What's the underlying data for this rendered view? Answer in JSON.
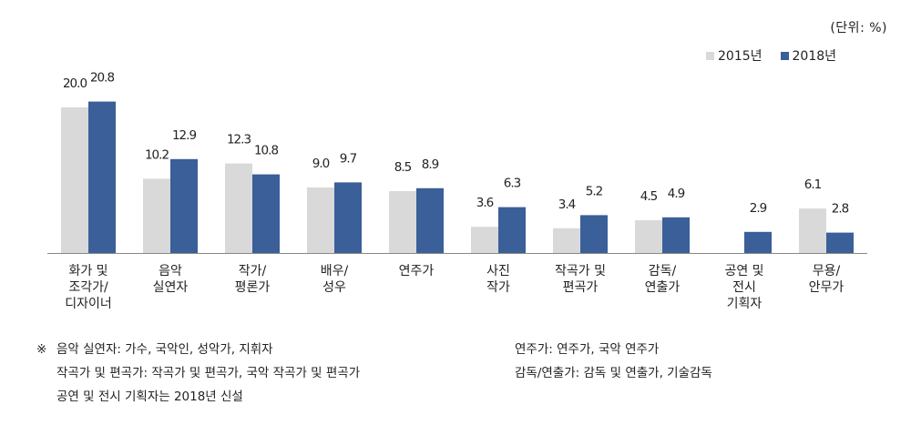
{
  "unit_label": "(단위: %)",
  "legend": [
    {
      "name": "2015년",
      "color": "#d9d9d9"
    },
    {
      "name": "2018년",
      "color": "#3a5f99"
    }
  ],
  "chart_data": {
    "type": "bar",
    "categories": [
      [
        "화가 및",
        "조각가/",
        "디자이너"
      ],
      [
        "음악",
        "실연자"
      ],
      [
        "작가/",
        "평론가"
      ],
      [
        "배우/",
        "성우"
      ],
      [
        "연주가"
      ],
      [
        "사진",
        "작가"
      ],
      [
        "작곡가 및",
        "편곡가"
      ],
      [
        "감독/",
        "연출가"
      ],
      [
        "공연 및",
        "전시",
        "기획자"
      ],
      [
        "무용/",
        "안무가"
      ]
    ],
    "series": [
      {
        "name": "2015년",
        "color": "#d9d9d9",
        "values": [
          20.0,
          10.2,
          12.3,
          9.0,
          8.5,
          3.6,
          3.4,
          4.5,
          null,
          6.1
        ],
        "labels": [
          "20.0",
          "10.2",
          "12.3",
          "9.0",
          "8.5",
          "3.6",
          "3.4",
          "4.5",
          "",
          "6.1"
        ]
      },
      {
        "name": "2018년",
        "color": "#3a5f99",
        "values": [
          20.8,
          12.9,
          10.8,
          9.7,
          8.9,
          6.3,
          5.2,
          4.9,
          2.9,
          2.8
        ],
        "labels": [
          "20.8",
          "12.9",
          "10.8",
          "9.7",
          "8.9",
          "6.3",
          "5.2",
          "4.9",
          "2.9",
          "2.8"
        ]
      }
    ],
    "ylim": [
      0,
      21
    ],
    "grid": false
  },
  "notes": {
    "marker": "※",
    "left": [
      "음악 실연자: 가수, 국악인, 성악가, 지휘자",
      "작곡가 및 편곡가: 작곡가 및 편곡가, 국악 작곡가 및 편곡가",
      "공연 및 전시 기획자는 2018년 신설"
    ],
    "right": [
      "연주가: 연주가, 국악 연주가",
      "감독/연출가: 감독 및 연출가, 기술감독"
    ]
  }
}
